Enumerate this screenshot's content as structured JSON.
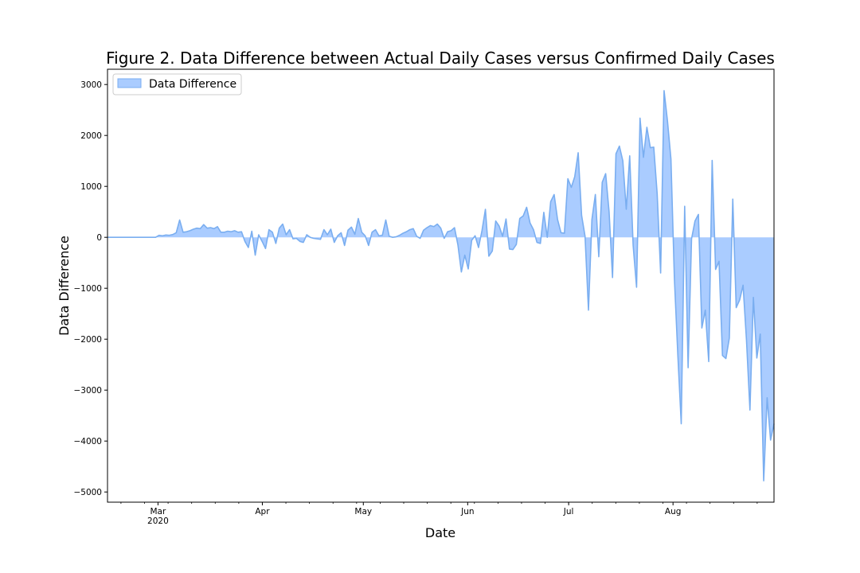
{
  "chart_data": {
    "type": "area",
    "title": "Figure 2. Data Difference between Actual Daily Cases versus Confirmed Daily Cases",
    "xlabel": "Date",
    "ylabel": "Data Difference",
    "x_start": "2020-02-15",
    "x_end": "2020-08-31",
    "xlim": [
      "2020-02-15",
      "2020-08-31"
    ],
    "ylim": [
      -5200,
      3300
    ],
    "yticks": [
      3000,
      2000,
      1000,
      0,
      -1000,
      -2000,
      -3000,
      -4000,
      -5000
    ],
    "ytick_labels": [
      "3000",
      "2000",
      "1000",
      "0",
      "−1000",
      "−2000",
      "−3000",
      "−4000",
      "−5000"
    ],
    "xticks": [
      {
        "date": "2020-03-01",
        "label": "Mar",
        "sublabel": "2020"
      },
      {
        "date": "2020-04-01",
        "label": "Apr",
        "sublabel": ""
      },
      {
        "date": "2020-05-01",
        "label": "May",
        "sublabel": ""
      },
      {
        "date": "2020-06-01",
        "label": "Jun",
        "sublabel": ""
      },
      {
        "date": "2020-07-01",
        "label": "Jul",
        "sublabel": ""
      },
      {
        "date": "2020-08-01",
        "label": "Aug",
        "sublabel": ""
      }
    ],
    "grid": false,
    "legend_position": "top-left",
    "colors": {
      "fill": "#aaccff",
      "line": "#7aaef0"
    },
    "series": [
      {
        "name": "Data Difference",
        "values": [
          0,
          0,
          0,
          0,
          0,
          0,
          0,
          0,
          0,
          0,
          0,
          0,
          0,
          0,
          0,
          40,
          30,
          45,
          40,
          55,
          90,
          340,
          100,
          110,
          130,
          160,
          180,
          170,
          250,
          180,
          190,
          170,
          210,
          100,
          100,
          120,
          110,
          130,
          100,
          110,
          -80,
          -200,
          120,
          -350,
          50,
          -80,
          -220,
          150,
          100,
          -120,
          180,
          260,
          50,
          150,
          -30,
          -20,
          -80,
          -100,
          50,
          0,
          -20,
          -30,
          -40,
          150,
          50,
          160,
          -100,
          30,
          90,
          -160,
          140,
          200,
          60,
          370,
          100,
          30,
          -160,
          100,
          150,
          30,
          40,
          340,
          20,
          0,
          10,
          40,
          80,
          110,
          150,
          170,
          20,
          -20,
          140,
          190,
          230,
          210,
          260,
          180,
          -20,
          110,
          130,
          190,
          -150,
          -680,
          -350,
          -620,
          -60,
          30,
          -200,
          130,
          550,
          -370,
          -270,
          320,
          220,
          20,
          360,
          -230,
          -240,
          -140,
          370,
          420,
          590,
          280,
          150,
          -100,
          -120,
          490,
          0,
          700,
          840,
          350,
          90,
          80,
          1150,
          980,
          1190,
          1660,
          430,
          20,
          -1430,
          350,
          840,
          -380,
          1080,
          1250,
          500,
          -790,
          1640,
          1790,
          1500,
          550,
          1600,
          -160,
          -980,
          2340,
          1570,
          2160,
          1760,
          1770,
          850,
          -700,
          2880,
          2280,
          1540,
          -800,
          -2300,
          -3660,
          610,
          -2560,
          -30,
          320,
          450,
          -1780,
          -1430,
          -2440,
          1510,
          -630,
          -470,
          -2320,
          -2380,
          -1980,
          750,
          -1380,
          -1230,
          -940,
          -2030,
          -3390,
          -1180,
          -2370,
          -1900,
          -4780,
          -3150,
          -3980,
          -3660
        ]
      }
    ]
  }
}
